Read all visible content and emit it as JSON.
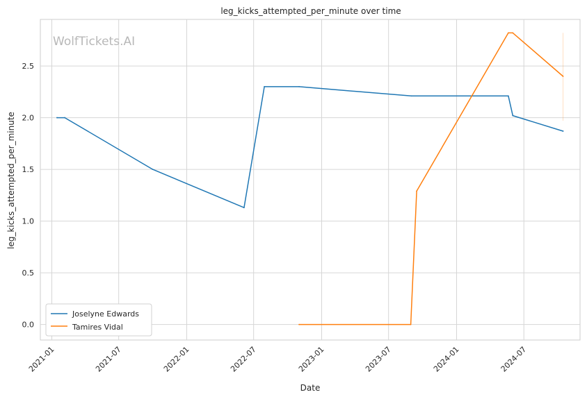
{
  "watermark": "WolfTickets.AI",
  "chart_data": {
    "type": "line",
    "title": "leg_kicks_attempted_per_minute over time",
    "xlabel": "Date",
    "ylabel": "leg_kicks_attempted_per_minute",
    "x_ticks": [
      "2021-01",
      "2021-07",
      "2022-01",
      "2022-07",
      "2023-01",
      "2023-07",
      "2024-01",
      "2024-07"
    ],
    "y_ticks": [
      "0.0",
      "0.5",
      "1.0",
      "1.5",
      "2.0",
      "2.5"
    ],
    "ylim": [
      -0.15,
      2.95
    ],
    "xlim": [
      "2020-12-01",
      "2024-11-30"
    ],
    "grid": true,
    "legend_position": "lower-left",
    "series": [
      {
        "name": "Joselyne Edwards",
        "color": "#1f77b4",
        "points": [
          {
            "x": "2021-01-15",
            "y": 2.0
          },
          {
            "x": "2021-02-05",
            "y": 2.0
          },
          {
            "x": "2021-10-01",
            "y": 1.5
          },
          {
            "x": "2022-06-05",
            "y": 1.13
          },
          {
            "x": "2022-07-30",
            "y": 2.3
          },
          {
            "x": "2022-11-01",
            "y": 2.3
          },
          {
            "x": "2023-09-01",
            "y": 2.21
          },
          {
            "x": "2024-05-20",
            "y": 2.21
          },
          {
            "x": "2024-06-01",
            "y": 2.02
          },
          {
            "x": "2024-10-15",
            "y": 1.87
          }
        ]
      },
      {
        "name": "Tamires Vidal",
        "color": "#ff7f0e",
        "points": [
          {
            "x": "2022-11-01",
            "y": 0.0
          },
          {
            "x": "2023-08-30",
            "y": 0.0
          },
          {
            "x": "2023-09-15",
            "y": 1.29
          },
          {
            "x": "2024-05-20",
            "y": 2.82
          },
          {
            "x": "2024-06-01",
            "y": 2.82
          },
          {
            "x": "2024-10-15",
            "y": 2.4
          }
        ]
      }
    ]
  }
}
